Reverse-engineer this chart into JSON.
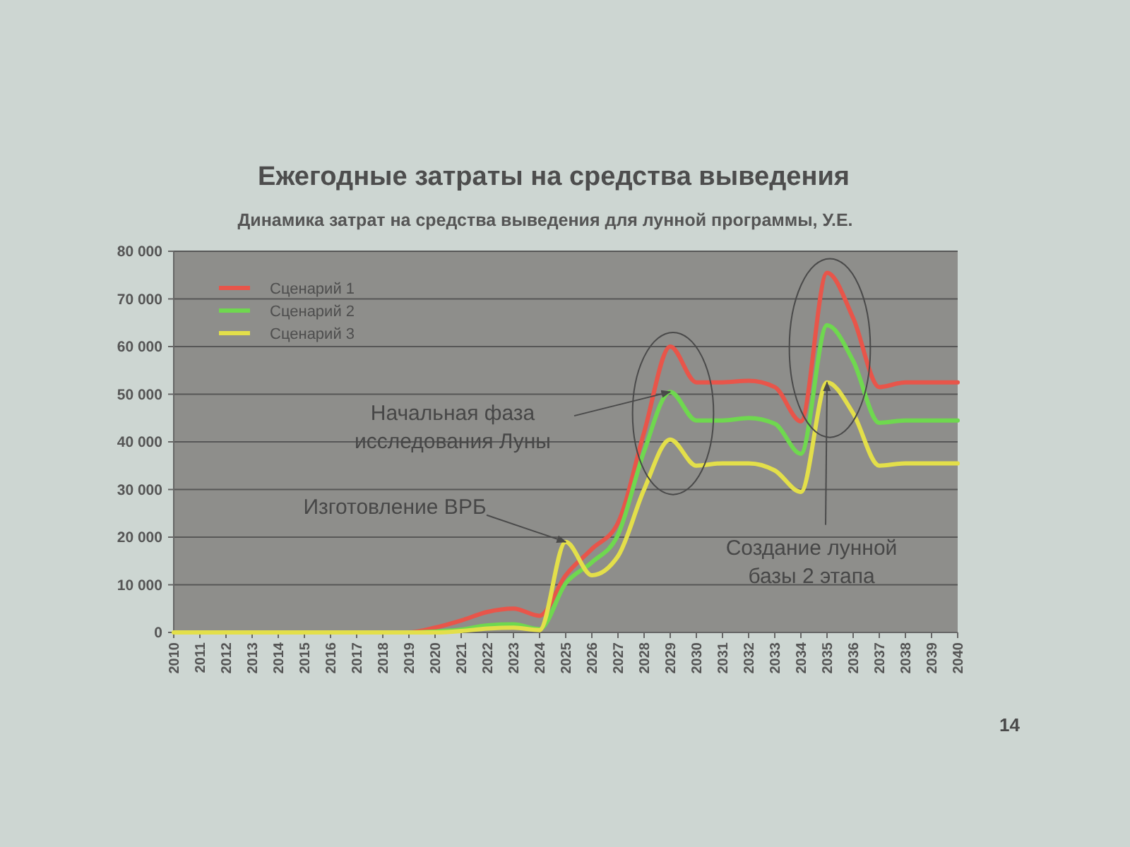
{
  "chart_data": {
    "type": "line",
    "title": "Ежегодные затраты на средства выведения",
    "subtitle": "Динамика затрат на средства выведения для лунной программы, У.Е.",
    "categories": [
      "2010",
      "2011",
      "2012",
      "2013",
      "2014",
      "2015",
      "2016",
      "2017",
      "2018",
      "2019",
      "2020",
      "2021",
      "2022",
      "2023",
      "2024",
      "2025",
      "2026",
      "2027",
      "2028",
      "2029",
      "2030",
      "2031",
      "2032",
      "2033",
      "2034",
      "2035",
      "2036",
      "2037",
      "2038",
      "2039",
      "2040"
    ],
    "series": [
      {
        "name": "Сценарий 1",
        "color": "#e8554a",
        "values": [
          null,
          null,
          null,
          null,
          null,
          null,
          null,
          null,
          0,
          0,
          1000,
          2500,
          4300,
          5000,
          3500,
          12000,
          17500,
          23000,
          42000,
          60000,
          52500,
          52500,
          52800,
          51500,
          44300,
          75500,
          66000,
          51500,
          52500,
          52500,
          52500
        ]
      },
      {
        "name": "Сценарий 2",
        "color": "#6fd84f",
        "values": [
          null,
          null,
          null,
          null,
          null,
          null,
          null,
          null,
          0,
          0,
          200,
          600,
          1500,
          1700,
          700,
          10300,
          14700,
          20500,
          38000,
          50500,
          44500,
          44500,
          45000,
          43800,
          37500,
          64500,
          57000,
          44000,
          44500,
          44500,
          44500
        ]
      },
      {
        "name": "Сценарий 3",
        "color": "#e3df4a",
        "values": [
          0,
          0,
          0,
          0,
          0,
          0,
          0,
          0,
          0,
          0,
          0,
          300,
          800,
          1000,
          500,
          19000,
          12000,
          16000,
          30000,
          40500,
          35000,
          35500,
          35500,
          34000,
          29500,
          52500,
          46000,
          35000,
          35500,
          35500,
          35500
        ]
      }
    ],
    "ylim": [
      0,
      80000
    ],
    "yticks": [
      0,
      {
        "value": 10000,
        "label": "10 000"
      },
      {
        "value": 20000,
        "label": "20 000"
      },
      {
        "value": 30000,
        "label": "30 000"
      },
      {
        "value": 40000,
        "label": "40 000"
      },
      {
        "value": 50000,
        "label": "50 000"
      },
      {
        "value": 60000,
        "label": "60 000"
      },
      {
        "value": 70000,
        "label": "70 000"
      },
      {
        "value": 80000,
        "label": "80 000"
      }
    ],
    "grid": "y",
    "legend": "top left",
    "annotations": [
      {
        "text": "Начальная фаза исследования Луны",
        "x": "2029",
        "y": 50500
      },
      {
        "text": "Изготовление ВРБ",
        "x": "2025",
        "y": 19000
      },
      {
        "text": "Создание лунной базы 2 этапа",
        "x": "2035",
        "y": 52500
      },
      "14"
    ]
  }
}
